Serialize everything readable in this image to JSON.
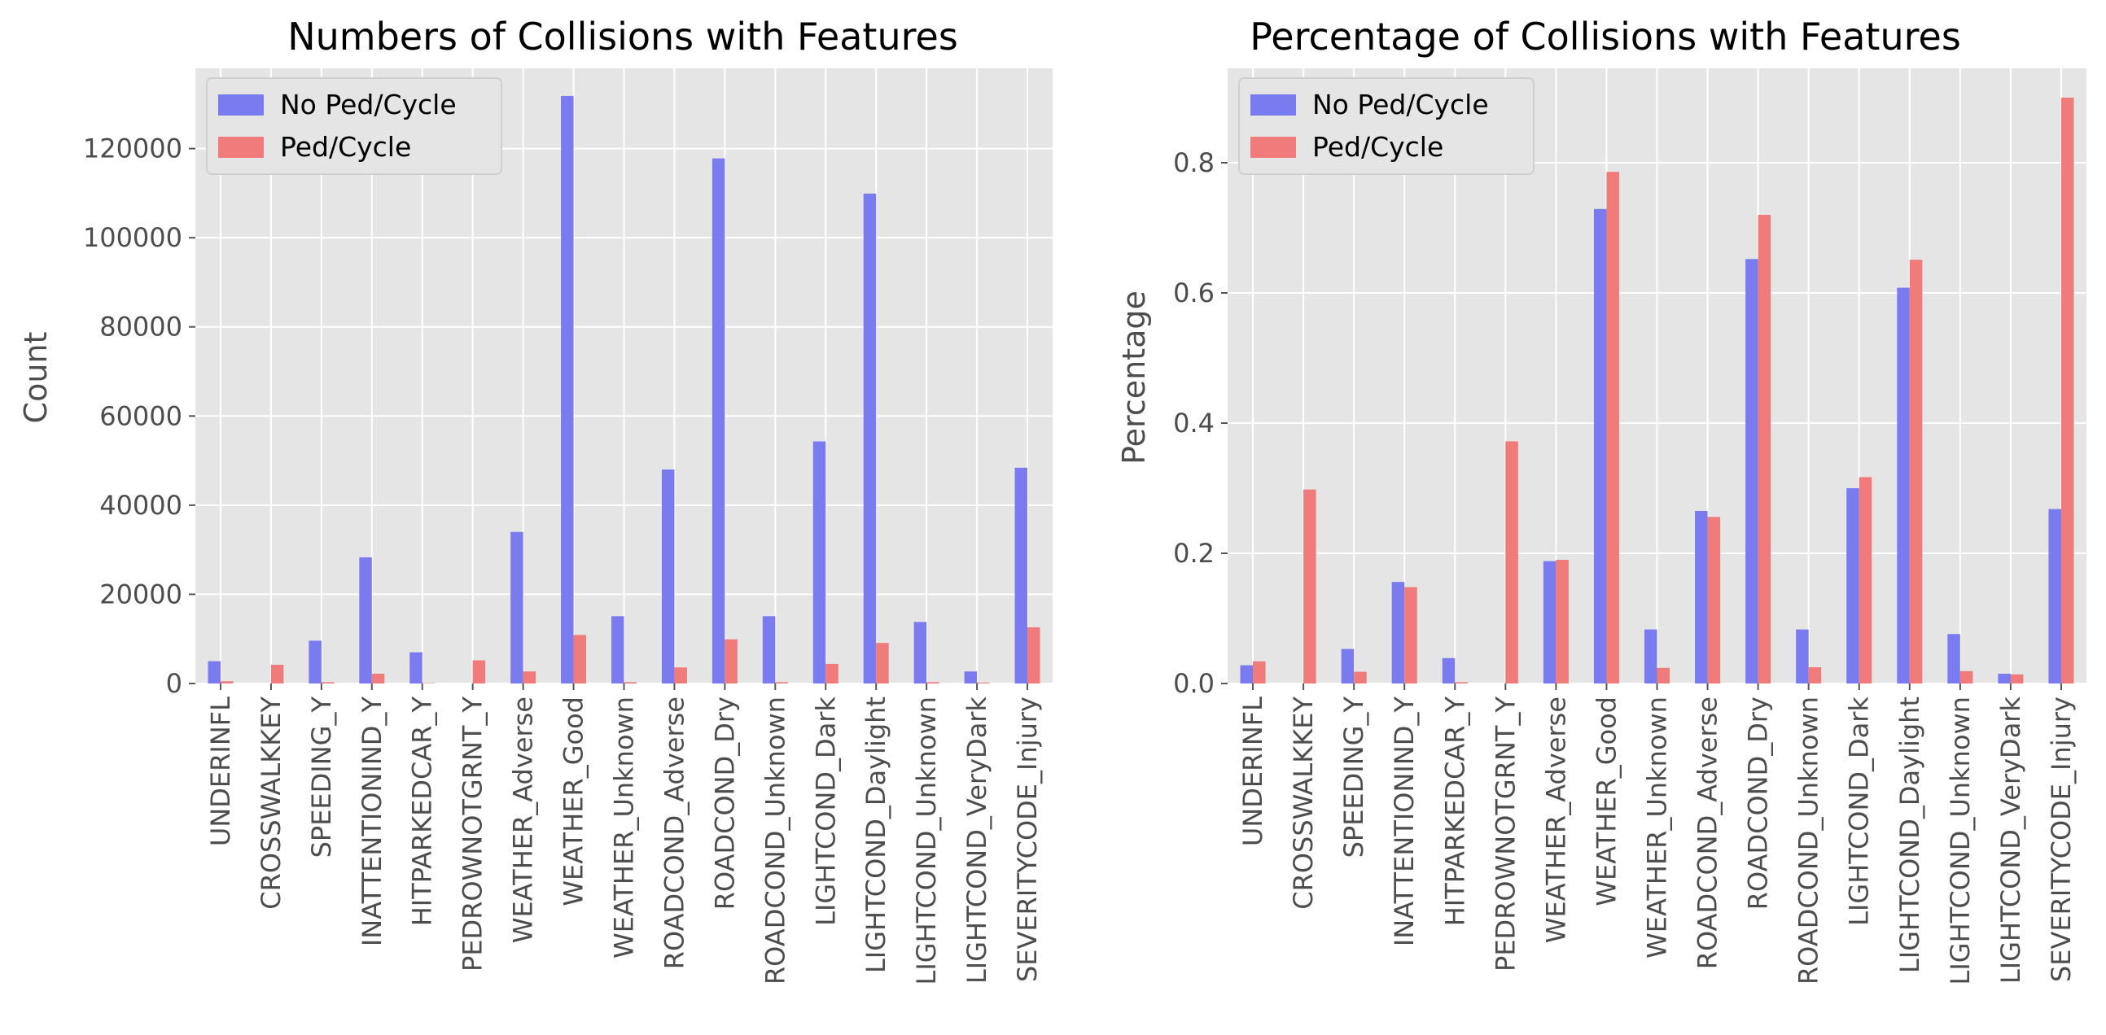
{
  "chart_data": [
    {
      "type": "bar",
      "title": "Numbers of Collisions with Features",
      "xlabel": "",
      "ylabel": "Count",
      "ylim": [
        0,
        138000
      ],
      "yticks": [
        0,
        20000,
        40000,
        60000,
        80000,
        100000,
        120000
      ],
      "grid": true,
      "legend_position": "top-left",
      "categories": [
        "UNDERINFL",
        "CROSSWALKKEY",
        "SPEEDING_Y",
        "INATTENTIONIND_Y",
        "HITPARKEDCAR_Y",
        "PEDROWNOTGRNT_Y",
        "WEATHER_Adverse",
        "WEATHER_Good",
        "WEATHER_Unknown",
        "ROADCOND_Adverse",
        "ROADCOND_Dry",
        "ROADCOND_Unknown",
        "LIGHTCOND_Dark",
        "LIGHTCOND_Daylight",
        "LIGHTCOND_Unknown",
        "LIGHTCOND_VeryDark",
        "SEVERITYCODE_Injury"
      ],
      "series": [
        {
          "name": "No Ped/Cycle",
          "color": "#7b7bf0",
          "values": [
            5000,
            0,
            9600,
            28300,
            7000,
            0,
            34000,
            131800,
            15100,
            48000,
            117800,
            15100,
            54300,
            109900,
            13800,
            2700,
            48400
          ]
        },
        {
          "name": "Ped/Cycle",
          "color": "#f07b7b",
          "values": [
            500,
            4200,
            300,
            2200,
            100,
            5200,
            2700,
            10900,
            300,
            3600,
            9900,
            300,
            4400,
            9100,
            300,
            200,
            12600
          ]
        }
      ]
    },
    {
      "type": "bar",
      "title": "Percentage of Collisions with Features",
      "xlabel": "",
      "ylabel": "Percentage",
      "ylim": [
        0,
        0.945
      ],
      "yticks": [
        0.0,
        0.2,
        0.4,
        0.6,
        0.8
      ],
      "ytick_labels": [
        "0.0",
        "0.2",
        "0.4",
        "0.6",
        "0.8"
      ],
      "grid": true,
      "legend_position": "top-left",
      "categories": [
        "UNDERINFL",
        "CROSSWALKKEY",
        "SPEEDING_Y",
        "INATTENTIONIND_Y",
        "HITPARKEDCAR_Y",
        "PEDROWNOTGRNT_Y",
        "WEATHER_Adverse",
        "WEATHER_Good",
        "WEATHER_Unknown",
        "ROADCOND_Adverse",
        "ROADCOND_Dry",
        "ROADCOND_Unknown",
        "LIGHTCOND_Dark",
        "LIGHTCOND_Daylight",
        "LIGHTCOND_Unknown",
        "LIGHTCOND_VeryDark",
        "SEVERITYCODE_Injury"
      ],
      "series": [
        {
          "name": "No Ped/Cycle",
          "color": "#7b7bf0",
          "values": [
            0.028,
            0.0,
            0.053,
            0.156,
            0.039,
            0.0,
            0.188,
            0.729,
            0.083,
            0.265,
            0.652,
            0.083,
            0.3,
            0.608,
            0.076,
            0.015,
            0.268
          ]
        },
        {
          "name": "Ped/Cycle",
          "color": "#f07b7b",
          "values": [
            0.034,
            0.298,
            0.018,
            0.148,
            0.002,
            0.372,
            0.19,
            0.786,
            0.024,
            0.256,
            0.72,
            0.025,
            0.317,
            0.651,
            0.019,
            0.014,
            0.9
          ]
        }
      ]
    }
  ]
}
